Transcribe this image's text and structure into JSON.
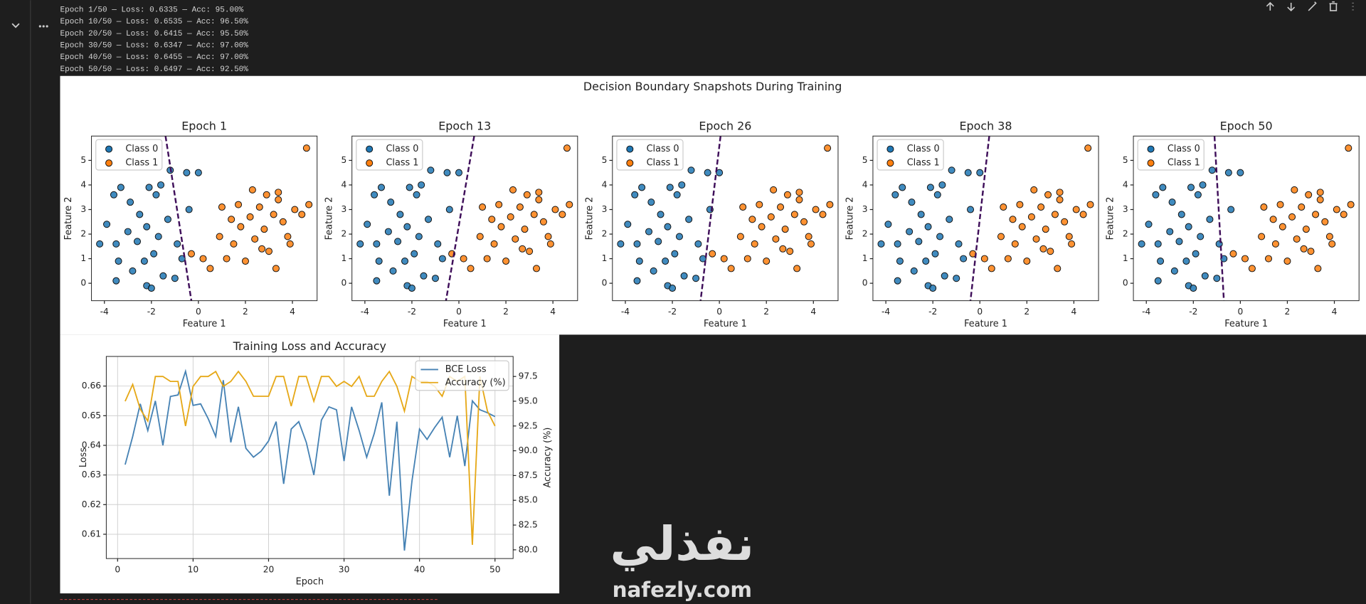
{
  "output": [
    "Epoch 1/50 — Loss: 0.6335 — Acc: 95.00%",
    "Epoch 10/50 — Loss: 0.6535 — Acc: 96.50%",
    "Epoch 20/50 — Loss: 0.6415 — Acc: 95.50%",
    "Epoch 30/50 — Loss: 0.6347 — Acc: 97.00%",
    "Epoch 40/50 — Loss: 0.6455 — Acc: 97.00%",
    "Epoch 50/50 — Loss: 0.6497 — Acc: 92.50%"
  ],
  "figure_title": "Decision Boundary Snapshots During Training",
  "watermark": {
    "arabic": "نفذلي",
    "latin": "nafezly.com"
  },
  "chart_data": [
    {
      "type": "scatter",
      "title": "Epoch 1",
      "x_label": "Feature 1",
      "y_label": "Feature 2",
      "xlim": [
        -4.55,
        5.05
      ],
      "ylim": [
        -0.71,
        5.99
      ],
      "xticks": [
        -4,
        -2,
        0,
        2,
        4
      ],
      "yticks": [
        0,
        1,
        2,
        3,
        4,
        5
      ],
      "legend": "upper left",
      "boundary": {
        "x": [
          -1.4,
          -0.3
        ],
        "y": [
          5.99,
          -0.71
        ],
        "color": "#3f0f5a"
      },
      "series": [
        {
          "name": "Class 0",
          "color": "#1f77b4",
          "x": [
            -3.6,
            -3.3,
            -2.9,
            -2.5,
            -2.1,
            -1.8,
            -1.6,
            -1.2,
            -0.5,
            0,
            -3.9,
            -3.5,
            -3.0,
            -2.6,
            -2.2,
            -1.7,
            -1.3,
            -0.9,
            -4.2,
            -3.4,
            -2.8,
            -2.3,
            -1.9,
            -1.5,
            -3.5,
            -2.2,
            -1.0,
            -0.7,
            -0.4,
            -2.0
          ],
          "y": [
            3.6,
            3.9,
            3.3,
            2.8,
            3.9,
            3.6,
            4.0,
            4.6,
            4.5,
            4.5,
            2.4,
            1.6,
            2.1,
            1.7,
            2.3,
            1.9,
            2.6,
            1.6,
            1.6,
            0.9,
            0.5,
            0.9,
            1.2,
            0.3,
            0.1,
            -0.1,
            0.2,
            1.0,
            3.0,
            -0.2
          ]
        },
        {
          "name": "Class 1",
          "color": "#ff7f0e",
          "x": [
            0.9,
            1.2,
            1.5,
            1.8,
            2.0,
            2.2,
            2.4,
            2.6,
            2.8,
            3.0,
            3.2,
            3.4,
            3.6,
            3.8,
            4.1,
            4.4,
            4.7,
            1.0,
            1.7,
            2.3,
            3.3,
            2.7,
            0.2,
            -0.3,
            4.6,
            1.4,
            2.9,
            3.9,
            0.5,
            3.4
          ],
          "y": [
            1.9,
            1.0,
            1.6,
            2.3,
            0.9,
            2.7,
            1.8,
            3.1,
            2.2,
            1.3,
            2.8,
            3.4,
            2.5,
            1.9,
            3.0,
            2.8,
            3.2,
            3.1,
            3.2,
            3.8,
            0.6,
            1.4,
            1.0,
            1.2,
            5.5,
            2.6,
            3.6,
            1.6,
            0.6,
            3.7
          ]
        }
      ]
    },
    {
      "type": "scatter",
      "title": "Epoch 13",
      "x_label": "Feature 1",
      "y_label": "Feature 2",
      "xlim": [
        -4.55,
        5.05
      ],
      "ylim": [
        -0.71,
        5.99
      ],
      "xticks": [
        -4,
        -2,
        0,
        2,
        4
      ],
      "yticks": [
        0,
        1,
        2,
        3,
        4,
        5
      ],
      "legend": "upper left",
      "boundary": {
        "x": [
          0.65,
          -0.55
        ],
        "y": [
          5.99,
          -0.71
        ],
        "color": "#3f0f5a"
      },
      "series": [
        {
          "name": "Class 0",
          "color": "#1f77b4",
          "x": [
            -3.6,
            -3.3,
            -2.9,
            -2.5,
            -2.1,
            -1.8,
            -1.6,
            -1.2,
            -0.5,
            0,
            -3.9,
            -3.5,
            -3.0,
            -2.6,
            -2.2,
            -1.7,
            -1.3,
            -0.9,
            -4.2,
            -3.4,
            -2.8,
            -2.3,
            -1.9,
            -1.5,
            -3.5,
            -2.2,
            -1.0,
            -0.7,
            -0.4,
            -2.0
          ],
          "y": [
            3.6,
            3.9,
            3.3,
            2.8,
            3.9,
            3.6,
            4.0,
            4.6,
            4.5,
            4.5,
            2.4,
            1.6,
            2.1,
            1.7,
            2.3,
            1.9,
            2.6,
            1.6,
            1.6,
            0.9,
            0.5,
            0.9,
            1.2,
            0.3,
            0.1,
            -0.1,
            0.2,
            1.0,
            3.0,
            -0.2
          ]
        },
        {
          "name": "Class 1",
          "color": "#ff7f0e",
          "x": [
            0.9,
            1.2,
            1.5,
            1.8,
            2.0,
            2.2,
            2.4,
            2.6,
            2.8,
            3.0,
            3.2,
            3.4,
            3.6,
            3.8,
            4.1,
            4.4,
            4.7,
            1.0,
            1.7,
            2.3,
            3.3,
            2.7,
            0.2,
            -0.3,
            4.6,
            1.4,
            2.9,
            3.9,
            0.5,
            3.4
          ],
          "y": [
            1.9,
            1.0,
            1.6,
            2.3,
            0.9,
            2.7,
            1.8,
            3.1,
            2.2,
            1.3,
            2.8,
            3.4,
            2.5,
            1.9,
            3.0,
            2.8,
            3.2,
            3.1,
            3.2,
            3.8,
            0.6,
            1.4,
            1.0,
            1.2,
            5.5,
            2.6,
            3.6,
            1.6,
            0.6,
            3.7
          ]
        }
      ]
    },
    {
      "type": "scatter",
      "title": "Epoch 26",
      "x_label": "Feature 1",
      "y_label": "Feature 2",
      "xlim": [
        -4.55,
        5.05
      ],
      "ylim": [
        -0.71,
        5.99
      ],
      "xticks": [
        -4,
        -2,
        0,
        2,
        4
      ],
      "yticks": [
        0,
        1,
        2,
        3,
        4,
        5
      ],
      "legend": "upper left",
      "boundary": {
        "x": [
          0.05,
          -0.8
        ],
        "y": [
          5.99,
          -0.71
        ],
        "color": "#3f0f5a"
      },
      "series": [
        {
          "name": "Class 0",
          "color": "#1f77b4",
          "x": [
            -3.6,
            -3.3,
            -2.9,
            -2.5,
            -2.1,
            -1.8,
            -1.6,
            -1.2,
            -0.5,
            0,
            -3.9,
            -3.5,
            -3.0,
            -2.6,
            -2.2,
            -1.7,
            -1.3,
            -0.9,
            -4.2,
            -3.4,
            -2.8,
            -2.3,
            -1.9,
            -1.5,
            -3.5,
            -2.2,
            -1.0,
            -0.7,
            -0.4,
            -2.0
          ],
          "y": [
            3.6,
            3.9,
            3.3,
            2.8,
            3.9,
            3.6,
            4.0,
            4.6,
            4.5,
            4.5,
            2.4,
            1.6,
            2.1,
            1.7,
            2.3,
            1.9,
            2.6,
            1.6,
            1.6,
            0.9,
            0.5,
            0.9,
            1.2,
            0.3,
            0.1,
            -0.1,
            0.2,
            1.0,
            3.0,
            -0.2
          ]
        },
        {
          "name": "Class 1",
          "color": "#ff7f0e",
          "x": [
            0.9,
            1.2,
            1.5,
            1.8,
            2.0,
            2.2,
            2.4,
            2.6,
            2.8,
            3.0,
            3.2,
            3.4,
            3.6,
            3.8,
            4.1,
            4.4,
            4.7,
            1.0,
            1.7,
            2.3,
            3.3,
            2.7,
            0.2,
            -0.3,
            4.6,
            1.4,
            2.9,
            3.9,
            0.5,
            3.4
          ],
          "y": [
            1.9,
            1.0,
            1.6,
            2.3,
            0.9,
            2.7,
            1.8,
            3.1,
            2.2,
            1.3,
            2.8,
            3.4,
            2.5,
            1.9,
            3.0,
            2.8,
            3.2,
            3.1,
            3.2,
            3.8,
            0.6,
            1.4,
            1.0,
            1.2,
            5.5,
            2.6,
            3.6,
            1.6,
            0.6,
            3.7
          ]
        }
      ]
    },
    {
      "type": "scatter",
      "title": "Epoch 38",
      "x_label": "Feature 1",
      "y_label": "Feature 2",
      "xlim": [
        -4.55,
        5.05
      ],
      "ylim": [
        -0.71,
        5.99
      ],
      "xticks": [
        -4,
        -2,
        0,
        2,
        4
      ],
      "yticks": [
        0,
        1,
        2,
        3,
        4,
        5
      ],
      "legend": "upper left",
      "boundary": {
        "x": [
          0.4,
          -0.4
        ],
        "y": [
          5.99,
          -0.71
        ],
        "color": "#3f0f5a"
      },
      "series": [
        {
          "name": "Class 0",
          "color": "#1f77b4",
          "x": [
            -3.6,
            -3.3,
            -2.9,
            -2.5,
            -2.1,
            -1.8,
            -1.6,
            -1.2,
            -0.5,
            0,
            -3.9,
            -3.5,
            -3.0,
            -2.6,
            -2.2,
            -1.7,
            -1.3,
            -0.9,
            -4.2,
            -3.4,
            -2.8,
            -2.3,
            -1.9,
            -1.5,
            -3.5,
            -2.2,
            -1.0,
            -0.7,
            -0.4,
            -2.0
          ],
          "y": [
            3.6,
            3.9,
            3.3,
            2.8,
            3.9,
            3.6,
            4.0,
            4.6,
            4.5,
            4.5,
            2.4,
            1.6,
            2.1,
            1.7,
            2.3,
            1.9,
            2.6,
            1.6,
            1.6,
            0.9,
            0.5,
            0.9,
            1.2,
            0.3,
            0.1,
            -0.1,
            0.2,
            1.0,
            3.0,
            -0.2
          ]
        },
        {
          "name": "Class 1",
          "color": "#ff7f0e",
          "x": [
            0.9,
            1.2,
            1.5,
            1.8,
            2.0,
            2.2,
            2.4,
            2.6,
            2.8,
            3.0,
            3.2,
            3.4,
            3.6,
            3.8,
            4.1,
            4.4,
            4.7,
            1.0,
            1.7,
            2.3,
            3.3,
            2.7,
            0.2,
            -0.3,
            4.6,
            1.4,
            2.9,
            3.9,
            0.5,
            3.4
          ],
          "y": [
            1.9,
            1.0,
            1.6,
            2.3,
            0.9,
            2.7,
            1.8,
            3.1,
            2.2,
            1.3,
            2.8,
            3.4,
            2.5,
            1.9,
            3.0,
            2.8,
            3.2,
            3.1,
            3.2,
            3.8,
            0.6,
            1.4,
            1.0,
            1.2,
            5.5,
            2.6,
            3.6,
            1.6,
            0.6,
            3.7
          ]
        }
      ]
    },
    {
      "type": "scatter",
      "title": "Epoch 50",
      "x_label": "Feature 1",
      "y_label": "Feature 2",
      "xlim": [
        -4.55,
        5.05
      ],
      "ylim": [
        -0.71,
        5.99
      ],
      "xticks": [
        -4,
        -2,
        0,
        2,
        4
      ],
      "yticks": [
        0,
        1,
        2,
        3,
        4,
        5
      ],
      "legend": "upper left",
      "boundary": {
        "x": [
          -1.1,
          -0.7
        ],
        "y": [
          5.99,
          -0.71
        ],
        "color": "#3f0f5a"
      },
      "series": [
        {
          "name": "Class 0",
          "color": "#1f77b4",
          "x": [
            -3.6,
            -3.3,
            -2.9,
            -2.5,
            -2.1,
            -1.8,
            -1.6,
            -1.2,
            -0.5,
            0,
            -3.9,
            -3.5,
            -3.0,
            -2.6,
            -2.2,
            -1.7,
            -1.3,
            -0.9,
            -4.2,
            -3.4,
            -2.8,
            -2.3,
            -1.9,
            -1.5,
            -3.5,
            -2.2,
            -1.0,
            -0.7,
            -0.4,
            -2.0
          ],
          "y": [
            3.6,
            3.9,
            3.3,
            2.8,
            3.9,
            3.6,
            4.0,
            4.6,
            4.5,
            4.5,
            2.4,
            1.6,
            2.1,
            1.7,
            2.3,
            1.9,
            2.6,
            1.6,
            1.6,
            0.9,
            0.5,
            0.9,
            1.2,
            0.3,
            0.1,
            -0.1,
            0.2,
            1.0,
            3.0,
            -0.2
          ]
        },
        {
          "name": "Class 1",
          "color": "#ff7f0e",
          "x": [
            0.9,
            1.2,
            1.5,
            1.8,
            2.0,
            2.2,
            2.4,
            2.6,
            2.8,
            3.0,
            3.2,
            3.4,
            3.6,
            3.8,
            4.1,
            4.4,
            4.7,
            1.0,
            1.7,
            2.3,
            3.3,
            2.7,
            0.2,
            -0.3,
            4.6,
            1.4,
            2.9,
            3.9,
            0.5,
            3.4
          ],
          "y": [
            1.9,
            1.0,
            1.6,
            2.3,
            0.9,
            2.7,
            1.8,
            3.1,
            2.2,
            1.3,
            2.8,
            3.4,
            2.5,
            1.9,
            3.0,
            2.8,
            3.2,
            3.1,
            3.2,
            3.8,
            0.6,
            1.4,
            1.0,
            1.2,
            5.5,
            2.6,
            3.6,
            1.6,
            0.6,
            3.7
          ]
        }
      ]
    },
    {
      "type": "line",
      "title": "Training Loss and Accuracy",
      "x_label": "Epoch",
      "y_label": "Loss",
      "y2_label": "Accuracy (%)",
      "grid": true,
      "legend": "upper right",
      "xlim": [
        -1.5,
        52.4
      ],
      "xticks": [
        0,
        10,
        20,
        30,
        40,
        50
      ],
      "ylim": [
        0.6018,
        0.67
      ],
      "yticks": [
        0.61,
        0.62,
        0.63,
        0.64,
        0.65,
        0.66
      ],
      "y2lim": [
        79.12,
        99.52
      ],
      "y2ticks": [
        {
          "value": 80,
          "label": "80.0"
        },
        {
          "value": 82.5,
          "label": "82.5"
        },
        {
          "value": 85,
          "label": "85.0"
        },
        {
          "value": 87.5,
          "label": "87.5"
        },
        {
          "value": 90,
          "label": "90.0"
        },
        {
          "value": 92.5,
          "label": "92.5"
        },
        {
          "value": 95,
          "label": "95.0"
        },
        {
          "value": 97.5,
          "label": "97.5"
        }
      ],
      "x": [
        1,
        2,
        3,
        4,
        5,
        6,
        7,
        8,
        9,
        10,
        11,
        12,
        13,
        14,
        15,
        16,
        17,
        18,
        19,
        20,
        21,
        22,
        23,
        24,
        25,
        26,
        27,
        28,
        29,
        30,
        31,
        32,
        33,
        34,
        35,
        36,
        37,
        38,
        39,
        40,
        41,
        42,
        43,
        44,
        45,
        46,
        47,
        48,
        49,
        50
      ],
      "series": [
        {
          "name": "BCE Loss",
          "color": "#4682b4",
          "axis": "y",
          "values": [
            0.6335,
            0.643,
            0.654,
            0.645,
            0.655,
            0.64,
            0.6565,
            0.657,
            0.665,
            0.6535,
            0.654,
            0.649,
            0.643,
            0.662,
            0.641,
            0.653,
            0.639,
            0.636,
            0.638,
            0.6415,
            0.648,
            0.627,
            0.6455,
            0.648,
            0.641,
            0.63,
            0.6485,
            0.653,
            0.652,
            0.6347,
            0.653,
            0.645,
            0.636,
            0.644,
            0.6545,
            0.623,
            0.648,
            0.6045,
            0.628,
            0.6455,
            0.642,
            0.646,
            0.6495,
            0.636,
            0.65,
            0.633,
            0.655,
            0.652,
            0.651,
            0.6497
          ]
        },
        {
          "name": "Accuracy (%)",
          "color": "#e6a817",
          "axis": "y2",
          "values": [
            95.0,
            96.7,
            94.2,
            93.0,
            97.5,
            97.5,
            97.0,
            97.0,
            92.5,
            96.5,
            97.5,
            97.5,
            98.0,
            96.5,
            97.0,
            98.0,
            97.0,
            95.5,
            95.5,
            95.5,
            97.5,
            97.5,
            94.5,
            97.5,
            97.5,
            95.0,
            97.5,
            97.5,
            96.5,
            97.0,
            96.5,
            97.5,
            95.5,
            95.5,
            97.0,
            98.0,
            96.5,
            94.0,
            97.5,
            97.0,
            97.0,
            96.5,
            95.5,
            97.5,
            97.0,
            97.5,
            80.5,
            97.5,
            94.0,
            92.5
          ]
        }
      ]
    }
  ]
}
